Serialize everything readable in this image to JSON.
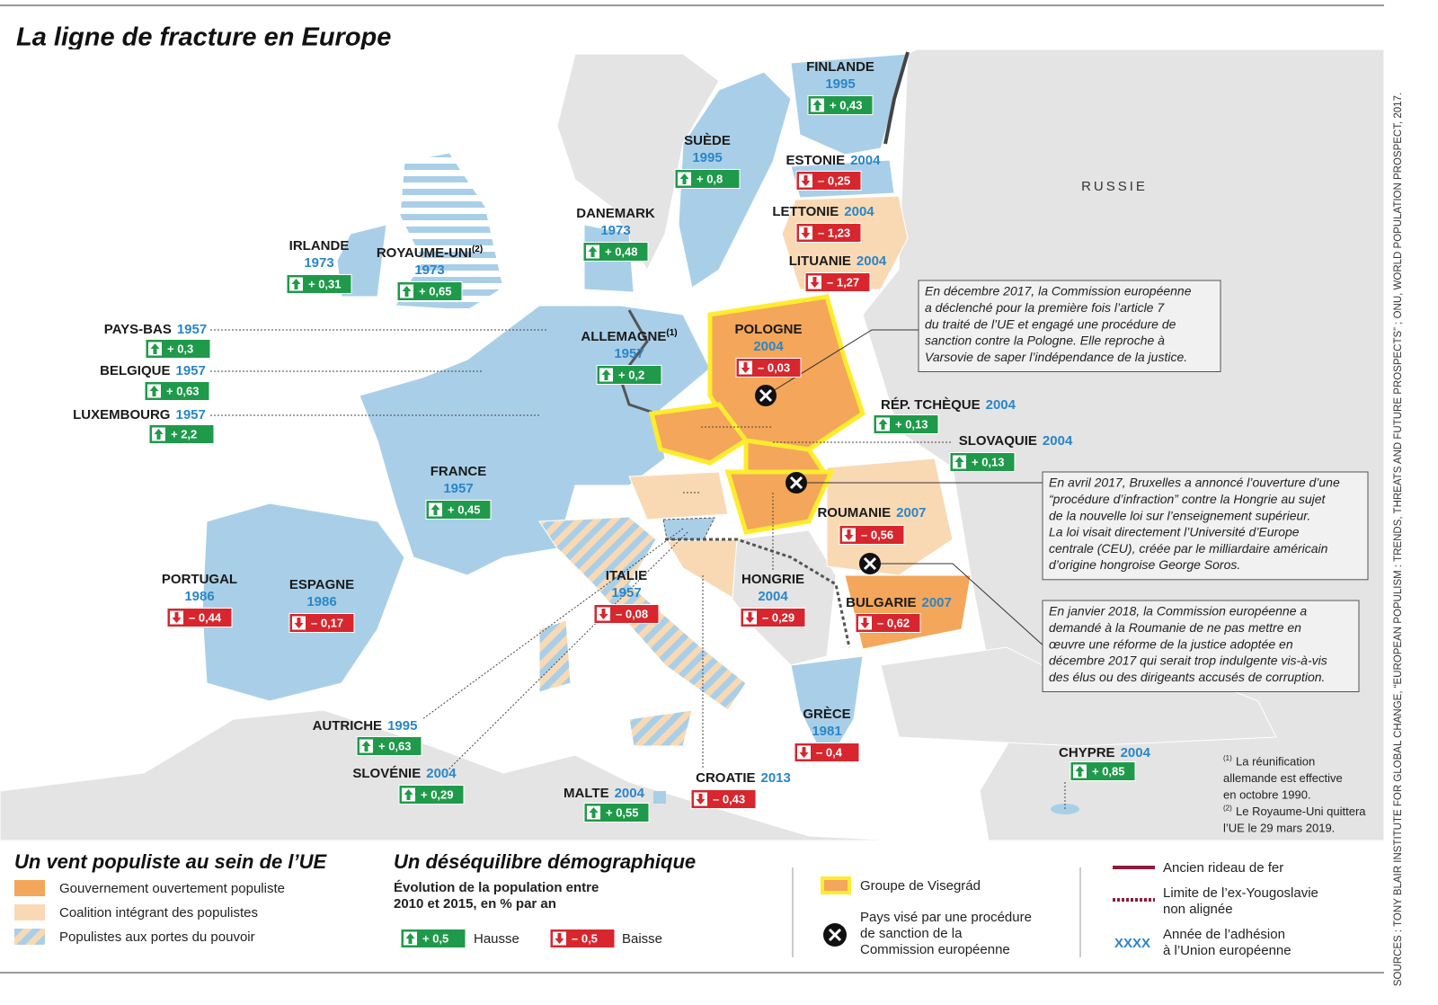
{
  "title": "La ligne de fracture en Europe",
  "russia_label": "RUSSIE",
  "countries": [
    {
      "name": "FINLANDE",
      "year": "1995",
      "change": "+ 0,43",
      "trend": "up"
    },
    {
      "name": "SUÈDE",
      "year": "1995",
      "change": "+ 0,8",
      "trend": "up"
    },
    {
      "name": "ESTONIE",
      "year": "2004",
      "change": "– 0,25",
      "trend": "down"
    },
    {
      "name": "LETTONIE",
      "year": "2004",
      "change": "– 1,23",
      "trend": "down"
    },
    {
      "name": "LITUANIE",
      "year": "2004",
      "change": "– 1,27",
      "trend": "down"
    },
    {
      "name": "DANEMARK",
      "year": "1973",
      "change": "+ 0,48",
      "trend": "up"
    },
    {
      "name": "IRLANDE",
      "year": "1973",
      "change": "+ 0,31",
      "trend": "up"
    },
    {
      "name": "ROYAUME-UNI",
      "note": "(2)",
      "year": "1973",
      "change": "+ 0,65",
      "trend": "up"
    },
    {
      "name": "PAYS-BAS",
      "year": "1957",
      "change": "+ 0,3",
      "trend": "up"
    },
    {
      "name": "BELGIQUE",
      "year": "1957",
      "change": "+ 0,63",
      "trend": "up"
    },
    {
      "name": "LUXEMBOURG",
      "year": "1957",
      "change": "+ 2,2",
      "trend": "up"
    },
    {
      "name": "ALLEMAGNE",
      "note": "(1)",
      "year": "1957",
      "change": "+ 0,2",
      "trend": "up"
    },
    {
      "name": "POLOGNE",
      "year": "2004",
      "change": "– 0,03",
      "trend": "down"
    },
    {
      "name": "RÉP. TCHÈQUE",
      "year": "2004",
      "change": "+ 0,13",
      "trend": "up"
    },
    {
      "name": "SLOVAQUIE",
      "year": "2004",
      "change": "+ 0,13",
      "trend": "up"
    },
    {
      "name": "FRANCE",
      "year": "1957",
      "change": "+ 0,45",
      "trend": "up"
    },
    {
      "name": "ROUMANIE",
      "year": "2007",
      "change": "– 0,56",
      "trend": "down"
    },
    {
      "name": "HONGRIE",
      "year": "2004",
      "change": "– 0,29",
      "trend": "down"
    },
    {
      "name": "BULGARIE",
      "year": "2007",
      "change": "– 0,62",
      "trend": "down"
    },
    {
      "name": "PORTUGAL",
      "year": "1986",
      "change": "– 0,44",
      "trend": "down"
    },
    {
      "name": "ESPAGNE",
      "year": "1986",
      "change": "– 0,17",
      "trend": "down"
    },
    {
      "name": "ITALIE",
      "year": "1957",
      "change": "– 0,08",
      "trend": "down"
    },
    {
      "name": "AUTRICHE",
      "year": "1995",
      "change": "+ 0,63",
      "trend": "up"
    },
    {
      "name": "SLOVÉNIE",
      "year": "2004",
      "change": "+ 0,29",
      "trend": "up"
    },
    {
      "name": "CROATIE",
      "year": "2013",
      "change": "– 0,43",
      "trend": "down"
    },
    {
      "name": "MALTE",
      "year": "2004",
      "change": "+ 0,55",
      "trend": "up"
    },
    {
      "name": "GRÈCE",
      "year": "1981",
      "change": "– 0,4",
      "trend": "down"
    },
    {
      "name": "CHYPRE",
      "year": "2004",
      "change": "+ 0,85",
      "trend": "up"
    }
  ],
  "annotations": [
    [
      "En décembre 2017, la Commission européenne",
      "a déclenché pour la première fois l’article 7",
      "du traité de l’UE et engagé une procédure de",
      "sanction contre la Pologne. Elle reproche à",
      "Varsovie de saper l’indépendance de la justice."
    ],
    [
      "En avril 2017, Bruxelles a annoncé l’ouverture d’une",
      "“procédure d’infraction” contre la Hongrie  au sujet",
      "de la nouvelle loi sur l’enseignement supérieur.",
      "La loi visait directement l’Université d’Europe",
      "centrale (CEU), créée par le milliardaire américain",
      "d’origine hongroise George Soros."
    ],
    [
      "En janvier 2018, la Commission européenne a",
      "demandé à la Roumanie de ne pas mettre en",
      "œuvre une réforme de la justice adoptée en",
      "décembre 2017 qui serait trop indulgente vis-à-vis",
      "des élus ou des dirigeants accusés de corruption."
    ]
  ],
  "footnotes": [
    {
      "mark": "(1)",
      "lines": [
        "La réunification",
        "allemande est effective",
        "en octobre 1990."
      ]
    },
    {
      "mark": "(2)",
      "lines": [
        "Le Royaume-Uni quittera",
        "l’UE le 29 mars 2019."
      ]
    }
  ],
  "source": "SOURCES : TONY BLAIR INSTITUTE FOR GLOBAL CHANGE, “EUROPEAN POPULISM : TRENDS, THREATS AND FUTURE PROSPECTS” ; ONU, WORLD POPULATION PROSPECT, 2017.",
  "legend": {
    "populism": {
      "title": "Un vent populiste au sein de l’UE",
      "items": [
        "Gouvernement ouvertement populiste",
        "Coalition intégrant des populistes",
        "Populistes aux portes du pouvoir"
      ]
    },
    "demography": {
      "title": "Un déséquilibre démographique",
      "subtitle": [
        "Évolution de la population entre",
        "2010 et 2015, en % par an"
      ],
      "up": {
        "sample": "+ 0,5",
        "label": "Hausse"
      },
      "down": {
        "sample": "– 0,5",
        "label": "Baisse"
      }
    },
    "procedures": {
      "visegrad": "Groupe de Visegrád",
      "sanction": [
        "Pays visé par une procédure",
        "de sanction de la",
        "Commission européenne"
      ]
    },
    "borders": {
      "iron_curtain": "Ancien rideau de fer",
      "yugoslavia": [
        "Limite de l’ex-Yougoslavie",
        "non alignée"
      ],
      "year_sample": "XXXX",
      "year_label": [
        "Année de l’adhésion",
        "à l’Union européenne"
      ]
    }
  }
}
